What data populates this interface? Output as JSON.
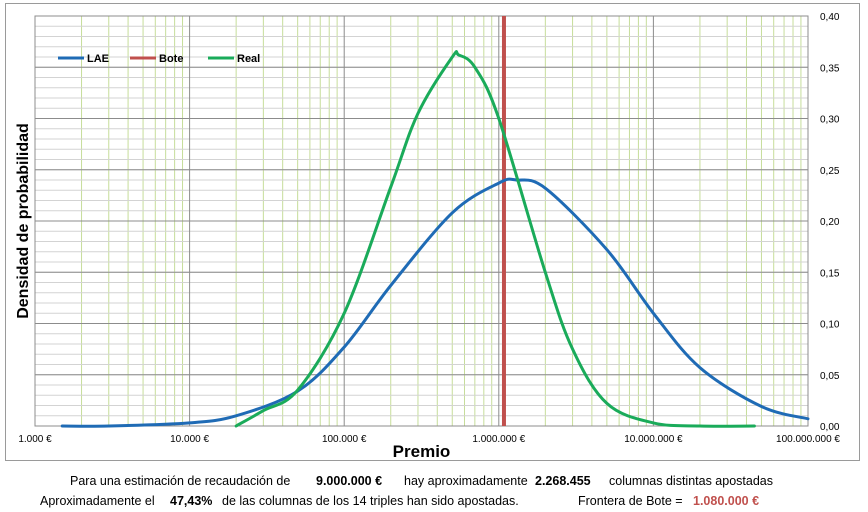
{
  "chart_data": {
    "type": "line",
    "xlabel": "Premio",
    "ylabel": "Densidad de probabilidad",
    "x_scale": "log",
    "xlim": [
      1000,
      100000000
    ],
    "ylim": [
      0,
      0.4
    ],
    "x_ticks": [
      {
        "value": 1000,
        "label": "1.000 €"
      },
      {
        "value": 10000,
        "label": "10.000 €"
      },
      {
        "value": 100000,
        "label": "100.000 €"
      },
      {
        "value": 1000000,
        "label": "1.000.000 €"
      },
      {
        "value": 10000000,
        "label": "10.000.000 €"
      },
      {
        "value": 100000000,
        "label": "100.000.000 €"
      }
    ],
    "y_ticks": [
      "0,00",
      "0,05",
      "0,10",
      "0,15",
      "0,20",
      "0,25",
      "0,30",
      "0,35",
      "0,40"
    ],
    "y_axis_side": "right",
    "grid": true,
    "legend_position": "top-left",
    "series": [
      {
        "name": "LAE",
        "color": "#1f6bb5",
        "x": [
          1500,
          3000,
          10000,
          20000,
          50000,
          100000,
          200000,
          500000,
          1000000,
          1300000,
          2000000,
          5000000,
          10000000,
          20000000,
          50000000,
          100000000
        ],
        "y": [
          0.0,
          0.0,
          0.003,
          0.01,
          0.034,
          0.077,
          0.137,
          0.208,
          0.237,
          0.24,
          0.232,
          0.172,
          0.11,
          0.057,
          0.019,
          0.007
        ]
      },
      {
        "name": "Bote",
        "color": "#c0504d",
        "x": [
          1080000,
          1080000
        ],
        "y": [
          0,
          0.4
        ]
      },
      {
        "name": "Real",
        "color": "#1aab5a",
        "x": [
          20000,
          30000,
          50000,
          100000,
          200000,
          300000,
          500000,
          550000,
          700000,
          1000000,
          2000000,
          3000000,
          5000000,
          10000000,
          20000000,
          45000000
        ],
        "y": [
          0.0,
          0.015,
          0.035,
          0.11,
          0.233,
          0.305,
          0.36,
          0.362,
          0.35,
          0.3,
          0.15,
          0.075,
          0.022,
          0.003,
          0.0,
          0.0
        ]
      }
    ]
  },
  "footer": {
    "line1": {
      "p1": "Para  una estimación de recaudación de",
      "p2": "9.000.000 €",
      "p3": "hay aproximadamente",
      "p4": "2.268.455",
      "p5": "columnas distintas apostadas"
    },
    "line2": {
      "p1": "Aproximadamente el",
      "p2": "47,43%",
      "p3": "de las columnas de los 14 triples han sido apostadas.",
      "p4": "Frontera de Bote =",
      "p5": "1.080.000 €"
    }
  }
}
